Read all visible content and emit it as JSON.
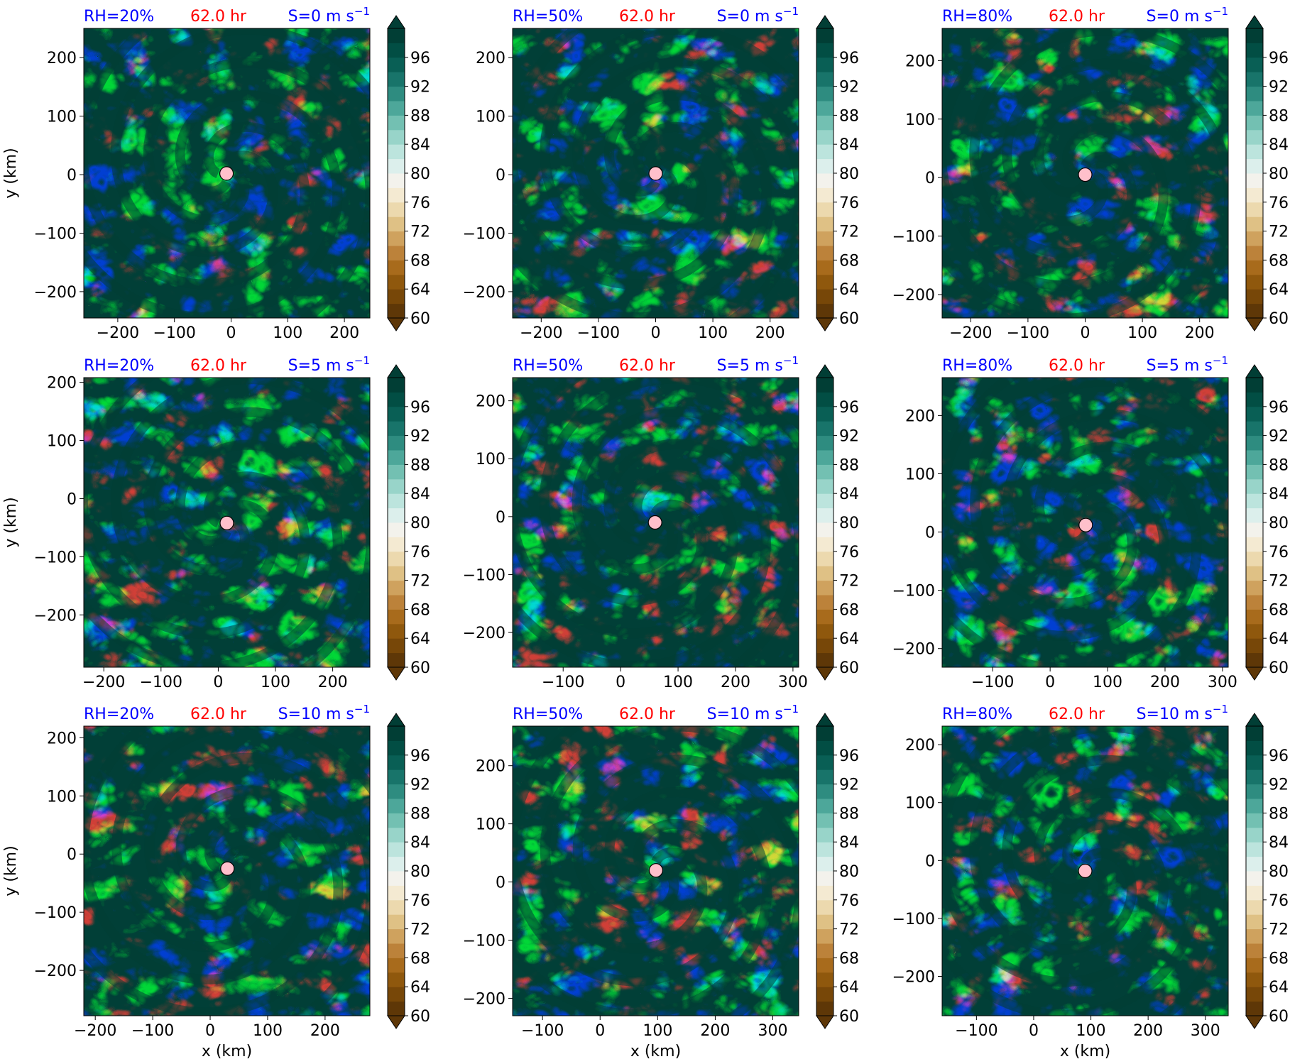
{
  "figure": {
    "colormap": {
      "name": "BrBG",
      "min": 60,
      "max": 100,
      "step": 2,
      "tick_values": [
        60,
        64,
        68,
        72,
        76,
        80,
        84,
        88,
        92,
        96
      ],
      "tick_labels": [
        "60",
        "64",
        "68",
        "72",
        "76",
        "80",
        "84",
        "88",
        "92",
        "96"
      ],
      "colors": [
        "#5e3707",
        "#774708",
        "#8f580d",
        "#a86b1c",
        "#bc823a",
        "#cfa25e",
        "#dfc185",
        "#ecd9ae",
        "#f4ead2",
        "#f3f2ec",
        "#dcefec",
        "#bce4dd",
        "#98d4c9",
        "#73c0b2",
        "#4da79a",
        "#2e8c80",
        "#18746a",
        "#095f55",
        "#024e44",
        "#013e35"
      ]
    },
    "xlabel": "x (km)",
    "ylabel": "y (km)",
    "colors": {
      "rh_label": "#0000ff",
      "time_label": "#ff0000",
      "shear_label": "#0000ff",
      "center_marker": "#ffc0cb"
    },
    "panels": [
      {
        "rh": "RH=20%",
        "time": "62.0 hr",
        "shear": "S=0 m s",
        "shear_exp": "−1",
        "xlim": [
          -260,
          245
        ],
        "ylim": [
          -245,
          250
        ],
        "xticks": [
          -200,
          -100,
          0,
          100,
          200
        ],
        "xtick_labels": [
          "−200",
          "−100",
          "0",
          "100",
          "200"
        ],
        "yticks": [
          -200,
          -100,
          0,
          100,
          200
        ],
        "ytick_labels": [
          "−200",
          "−100",
          "0",
          "100",
          "200"
        ],
        "center": [
          -8,
          2
        ],
        "show_xlabel": false,
        "show_ylabel": true
      },
      {
        "rh": "RH=50%",
        "time": "62.0 hr",
        "shear": "S=0 m s",
        "shear_exp": "−1",
        "xlim": [
          -250,
          250
        ],
        "ylim": [
          -245,
          250
        ],
        "xticks": [
          -200,
          -100,
          0,
          100,
          200
        ],
        "xtick_labels": [
          "−200",
          "−100",
          "0",
          "100",
          "200"
        ],
        "yticks": [
          -200,
          -100,
          0,
          100,
          200
        ],
        "ytick_labels": [
          "−200",
          "−100",
          "0",
          "100",
          "200"
        ],
        "center": [
          0,
          2
        ],
        "show_xlabel": false,
        "show_ylabel": false
      },
      {
        "rh": "RH=80%",
        "time": "62.0 hr",
        "shear": "S=0 m s",
        "shear_exp": "−1",
        "xlim": [
          -250,
          250
        ],
        "ylim": [
          -240,
          255
        ],
        "xticks": [
          -200,
          -100,
          0,
          100,
          200
        ],
        "xtick_labels": [
          "−200",
          "−100",
          "0",
          "100",
          "200"
        ],
        "yticks": [
          -200,
          -100,
          0,
          100,
          200
        ],
        "ytick_labels": [
          "−200",
          "−100",
          "0",
          "100",
          "200"
        ],
        "center": [
          0,
          5
        ],
        "show_xlabel": false,
        "show_ylabel": false
      },
      {
        "rh": "RH=20%",
        "time": "62.0 hr",
        "shear": "S=5 m s",
        "shear_exp": "−1",
        "xlim": [
          -235,
          265
        ],
        "ylim": [
          -290,
          208
        ],
        "xticks": [
          -200,
          -100,
          0,
          100,
          200
        ],
        "xtick_labels": [
          "−200",
          "−100",
          "0",
          "100",
          "200"
        ],
        "yticks": [
          -200,
          -100,
          0,
          100,
          200
        ],
        "ytick_labels": [
          "−200",
          "−100",
          "0",
          "100",
          "200"
        ],
        "center": [
          15,
          -42
        ],
        "show_xlabel": false,
        "show_ylabel": true
      },
      {
        "rh": "RH=50%",
        "time": "62.0 hr",
        "shear": "S=5 m s",
        "shear_exp": "−1",
        "xlim": [
          -188,
          310
        ],
        "ylim": [
          -260,
          240
        ],
        "xticks": [
          -100,
          0,
          100,
          200,
          300
        ],
        "xtick_labels": [
          "−100",
          "0",
          "100",
          "200",
          "300"
        ],
        "yticks": [
          -200,
          -100,
          0,
          100,
          200
        ],
        "ytick_labels": [
          "−200",
          "−100",
          "0",
          "100",
          "200"
        ],
        "center": [
          60,
          -10
        ],
        "show_xlabel": false,
        "show_ylabel": false
      },
      {
        "rh": "RH=80%",
        "time": "62.0 hr",
        "shear": "S=5 m s",
        "shear_exp": "−1",
        "xlim": [
          -188,
          310
        ],
        "ylim": [
          -232,
          265
        ],
        "xticks": [
          -100,
          0,
          100,
          200,
          300
        ],
        "xtick_labels": [
          "−100",
          "0",
          "100",
          "200",
          "300"
        ],
        "yticks": [
          -200,
          -100,
          0,
          100,
          200
        ],
        "ytick_labels": [
          "−200",
          "−100",
          "0",
          "100",
          "200"
        ],
        "center": [
          62,
          12
        ],
        "show_xlabel": false,
        "show_ylabel": false
      },
      {
        "rh": "RH=20%",
        "time": "62.0 hr",
        "shear": "S=10 m s",
        "shear_exp": "−1",
        "xlim": [
          -220,
          278
        ],
        "ylim": [
          -278,
          220
        ],
        "xticks": [
          -200,
          -100,
          0,
          100,
          200
        ],
        "xtick_labels": [
          "−200",
          "−100",
          "0",
          "100",
          "200"
        ],
        "yticks": [
          -200,
          -100,
          0,
          100,
          200
        ],
        "ytick_labels": [
          "−200",
          "−100",
          "0",
          "100",
          "200"
        ],
        "center": [
          30,
          -25
        ],
        "show_xlabel": true,
        "show_ylabel": true
      },
      {
        "rh": "RH=50%",
        "time": "62.0 hr",
        "shear": "S=10 m s",
        "shear_exp": "−1",
        "xlim": [
          -152,
          345
        ],
        "ylim": [
          -230,
          268
        ],
        "xticks": [
          -100,
          0,
          100,
          200,
          300
        ],
        "xtick_labels": [
          "−100",
          "0",
          "100",
          "200",
          "300"
        ],
        "yticks": [
          -200,
          -100,
          0,
          100,
          200
        ],
        "ytick_labels": [
          "−200",
          "−100",
          "0",
          "100",
          "200"
        ],
        "center": [
          97,
          20
        ],
        "show_xlabel": true,
        "show_ylabel": false
      },
      {
        "rh": "RH=80%",
        "time": "62.0 hr",
        "shear": "S=10 m s",
        "shear_exp": "−1",
        "xlim": [
          -160,
          340
        ],
        "ylim": [
          -268,
          232
        ],
        "xticks": [
          -100,
          0,
          100,
          200,
          300
        ],
        "xtick_labels": [
          "−100",
          "0",
          "100",
          "200",
          "300"
        ],
        "yticks": [
          -200,
          -100,
          0,
          100,
          200
        ],
        "ytick_labels": [
          "−200",
          "−100",
          "0",
          "100",
          "200"
        ],
        "center": [
          90,
          -18
        ],
        "show_xlabel": true,
        "show_ylabel": false
      }
    ]
  }
}
